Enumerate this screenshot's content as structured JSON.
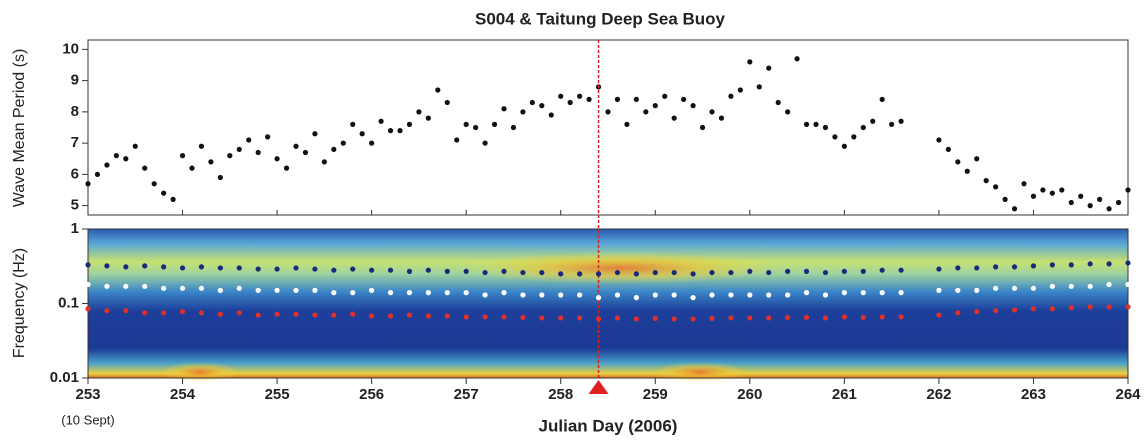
{
  "chart_data": [
    {
      "type": "scatter",
      "title": "S004 & Taitung Deep Sea Buoy",
      "ylabel": "Wave Mean Period (s)",
      "x": [
        253.0,
        253.1,
        253.2,
        253.3,
        253.4,
        253.5,
        253.6,
        253.7,
        253.8,
        253.9,
        254.0,
        254.1,
        254.2,
        254.3,
        254.4,
        254.5,
        254.6,
        254.7,
        254.8,
        254.9,
        255.0,
        255.1,
        255.2,
        255.3,
        255.4,
        255.5,
        255.6,
        255.7,
        255.8,
        255.9,
        256.0,
        256.1,
        256.2,
        256.3,
        256.4,
        256.5,
        256.6,
        256.7,
        256.8,
        256.9,
        257.0,
        257.1,
        257.2,
        257.3,
        257.4,
        257.5,
        257.6,
        257.7,
        257.8,
        257.9,
        258.0,
        258.1,
        258.2,
        258.3,
        258.4,
        258.5,
        258.6,
        258.7,
        258.8,
        258.9,
        259.0,
        259.1,
        259.2,
        259.3,
        259.4,
        259.5,
        259.6,
        259.7,
        259.8,
        259.9,
        260.0,
        260.1,
        260.2,
        260.3,
        260.4,
        260.5,
        260.6,
        260.7,
        260.8,
        260.9,
        261.0,
        261.1,
        261.2,
        261.3,
        261.4,
        261.5,
        261.6,
        262.0,
        262.1,
        262.2,
        262.3,
        262.4,
        262.5,
        262.6,
        262.7,
        262.8,
        262.9,
        263.0,
        263.1,
        263.2,
        263.3,
        263.4,
        263.5,
        263.6,
        263.7,
        263.8,
        263.9,
        264.0
      ],
      "series": [
        {
          "color": "#111111",
          "values": [
            5.7,
            6.0,
            6.3,
            6.6,
            6.5,
            6.9,
            6.2,
            5.7,
            5.4,
            5.2,
            6.6,
            6.2,
            6.9,
            6.4,
            5.9,
            6.6,
            6.8,
            7.1,
            6.7,
            7.2,
            6.5,
            6.2,
            6.9,
            6.7,
            7.3,
            6.4,
            6.8,
            7.0,
            7.6,
            7.3,
            7.0,
            7.7,
            7.4,
            7.4,
            7.6,
            8.0,
            7.8,
            8.7,
            8.3,
            7.1,
            7.6,
            7.5,
            7.0,
            7.6,
            8.1,
            7.5,
            8.0,
            8.3,
            8.2,
            7.9,
            8.5,
            8.3,
            8.5,
            8.4,
            8.8,
            8.0,
            8.4,
            7.6,
            8.4,
            8.0,
            8.2,
            8.5,
            7.8,
            8.4,
            8.2,
            7.5,
            8.0,
            7.8,
            8.5,
            8.7,
            9.6,
            8.8,
            9.4,
            8.3,
            8.0,
            9.7,
            7.6,
            7.6,
            7.5,
            7.2,
            6.9,
            7.2,
            7.5,
            7.7,
            8.4,
            7.6,
            7.7,
            7.1,
            6.8,
            6.4,
            6.1,
            6.5,
            5.8,
            5.6,
            5.2,
            4.9,
            5.7,
            5.3,
            5.5,
            5.4,
            5.5,
            5.1,
            5.3,
            5.0,
            5.2,
            4.9,
            5.1,
            5.5
          ]
        }
      ],
      "xlim": [
        253,
        264
      ],
      "ylim": [
        4.7,
        10.3
      ],
      "yticks": [
        5,
        6,
        7,
        8,
        9,
        10
      ],
      "marker_x": 258.4
    },
    {
      "type": "scatter",
      "ylabel": "Frequency (Hz)",
      "xlabel": "Julian Day (2006)",
      "x_note": "(10 Sept)",
      "log_y": true,
      "x": [
        253.0,
        253.2,
        253.4,
        253.6,
        253.8,
        254.0,
        254.2,
        254.4,
        254.6,
        254.8,
        255.0,
        255.2,
        255.4,
        255.6,
        255.8,
        256.0,
        256.2,
        256.4,
        256.6,
        256.8,
        257.0,
        257.2,
        257.4,
        257.6,
        257.8,
        258.0,
        258.2,
        258.4,
        258.6,
        258.8,
        259.0,
        259.2,
        259.4,
        259.6,
        259.8,
        260.0,
        260.2,
        260.4,
        260.6,
        260.8,
        261.0,
        261.2,
        261.4,
        261.6,
        262.0,
        262.2,
        262.4,
        262.6,
        262.8,
        263.0,
        263.2,
        263.4,
        263.6,
        263.8,
        264.0
      ],
      "series": [
        {
          "color": "#1a2a7a",
          "values": [
            0.33,
            0.32,
            0.31,
            0.32,
            0.31,
            0.3,
            0.31,
            0.3,
            0.3,
            0.29,
            0.29,
            0.3,
            0.29,
            0.28,
            0.29,
            0.28,
            0.28,
            0.27,
            0.28,
            0.27,
            0.27,
            0.26,
            0.27,
            0.26,
            0.26,
            0.25,
            0.25,
            0.25,
            0.26,
            0.25,
            0.26,
            0.26,
            0.25,
            0.26,
            0.26,
            0.27,
            0.26,
            0.27,
            0.27,
            0.26,
            0.27,
            0.27,
            0.28,
            0.28,
            0.29,
            0.3,
            0.3,
            0.31,
            0.31,
            0.32,
            0.33,
            0.33,
            0.34,
            0.34,
            0.35
          ]
        },
        {
          "color": "#ffffff",
          "values": [
            0.18,
            0.17,
            0.17,
            0.17,
            0.16,
            0.16,
            0.16,
            0.15,
            0.16,
            0.15,
            0.15,
            0.15,
            0.15,
            0.14,
            0.14,
            0.15,
            0.14,
            0.14,
            0.14,
            0.14,
            0.14,
            0.13,
            0.14,
            0.13,
            0.13,
            0.13,
            0.13,
            0.12,
            0.13,
            0.12,
            0.13,
            0.13,
            0.12,
            0.13,
            0.13,
            0.13,
            0.13,
            0.13,
            0.14,
            0.13,
            0.14,
            0.14,
            0.14,
            0.14,
            0.15,
            0.15,
            0.15,
            0.16,
            0.16,
            0.16,
            0.17,
            0.17,
            0.17,
            0.18,
            0.18
          ]
        },
        {
          "color": "#e0302a",
          "values": [
            0.085,
            0.08,
            0.08,
            0.075,
            0.075,
            0.078,
            0.075,
            0.072,
            0.075,
            0.07,
            0.072,
            0.072,
            0.07,
            0.07,
            0.072,
            0.068,
            0.068,
            0.07,
            0.068,
            0.068,
            0.066,
            0.066,
            0.066,
            0.065,
            0.064,
            0.064,
            0.064,
            0.062,
            0.064,
            0.062,
            0.063,
            0.062,
            0.062,
            0.063,
            0.064,
            0.064,
            0.064,
            0.065,
            0.065,
            0.064,
            0.066,
            0.065,
            0.066,
            0.066,
            0.07,
            0.075,
            0.078,
            0.08,
            0.082,
            0.085,
            0.085,
            0.088,
            0.09,
            0.09,
            0.09
          ]
        }
      ],
      "xlim": [
        253,
        264
      ],
      "ylim": [
        0.01,
        1
      ],
      "xticks": [
        253,
        254,
        255,
        256,
        257,
        258,
        259,
        260,
        261,
        262,
        263,
        264
      ],
      "yticks": [
        0.01,
        0.1,
        1
      ]
    }
  ]
}
